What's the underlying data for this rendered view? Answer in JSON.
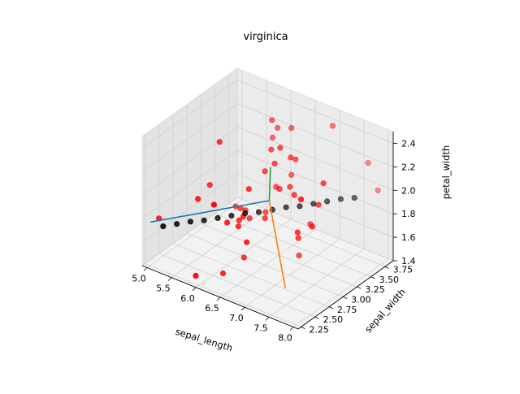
{
  "chart_data": {
    "type": "scatter",
    "projection": "3d",
    "title": "virginica",
    "xlabel": "sepal_length",
    "ylabel": "sepal_width",
    "zlabel": "petal_width",
    "xlim": [
      4.9,
      8.1
    ],
    "ylim": [
      2.2,
      3.9
    ],
    "zlim": [
      1.4,
      2.5
    ],
    "xticks": [
      "5.0",
      "5.5",
      "6.0",
      "6.5",
      "7.0",
      "7.5",
      "8.0"
    ],
    "yticks": [
      "2.25",
      "2.50",
      "2.75",
      "3.00",
      "3.25",
      "3.50",
      "3.75"
    ],
    "zticks": [
      "1.4",
      "1.6",
      "1.8",
      "2.0",
      "2.2",
      "2.4"
    ],
    "grid": true,
    "colors": {
      "data_points": "#ff0000",
      "fit_points": "#000000",
      "axis_line_1": "#1f77b4",
      "axis_line_2": "#ff7f0e",
      "axis_line_3": "#2ca02c",
      "pane": "#f2f2f2",
      "grid": "#d0d0d0"
    },
    "series": [
      {
        "kind": "points",
        "color_key": "data_points",
        "points": [
          [
            6.3,
            3.3,
            2.5
          ],
          [
            5.8,
            2.7,
            1.9
          ],
          [
            7.1,
            3.0,
            2.1
          ],
          [
            6.3,
            2.9,
            1.8
          ],
          [
            6.5,
            3.0,
            2.2
          ],
          [
            7.6,
            3.0,
            2.1
          ],
          [
            4.9,
            2.5,
            1.7
          ],
          [
            7.3,
            2.9,
            1.8
          ],
          [
            6.7,
            2.5,
            1.8
          ],
          [
            7.2,
            3.6,
            2.5
          ],
          [
            6.5,
            3.2,
            2.0
          ],
          [
            6.4,
            2.7,
            1.9
          ],
          [
            6.8,
            3.0,
            2.1
          ],
          [
            5.7,
            2.5,
            2.0
          ],
          [
            5.8,
            2.8,
            2.4
          ],
          [
            6.4,
            3.2,
            2.3
          ],
          [
            6.5,
            3.0,
            1.8
          ],
          [
            7.7,
            3.8,
            2.2
          ],
          [
            7.7,
            2.6,
            2.3
          ],
          [
            6.0,
            2.2,
            1.5
          ],
          [
            6.9,
            3.2,
            2.3
          ],
          [
            5.6,
            2.8,
            2.0
          ],
          [
            7.7,
            2.8,
            2.0
          ],
          [
            6.3,
            2.7,
            1.8
          ],
          [
            6.7,
            3.3,
            2.1
          ],
          [
            7.2,
            3.2,
            1.8
          ],
          [
            6.2,
            2.8,
            1.8
          ],
          [
            6.1,
            3.0,
            1.8
          ],
          [
            6.4,
            2.8,
            2.1
          ],
          [
            7.2,
            3.0,
            1.6
          ],
          [
            7.4,
            2.8,
            1.9
          ],
          [
            7.9,
            3.8,
            2.0
          ],
          [
            6.3,
            2.8,
            1.5
          ],
          [
            6.1,
            2.6,
            1.4
          ],
          [
            7.7,
            3.0,
            2.3
          ],
          [
            6.3,
            3.4,
            2.4
          ],
          [
            6.4,
            3.1,
            1.8
          ],
          [
            6.0,
            3.0,
            1.8
          ],
          [
            6.9,
            3.1,
            2.1
          ],
          [
            6.7,
            3.1,
            2.4
          ],
          [
            5.8,
            2.7,
            1.9
          ],
          [
            6.8,
            3.2,
            2.3
          ],
          [
            6.7,
            3.3,
            2.5
          ],
          [
            6.7,
            3.0,
            2.3
          ],
          [
            6.3,
            2.5,
            1.9
          ],
          [
            6.2,
            3.4,
            2.3
          ],
          [
            5.9,
            3.0,
            1.8
          ]
        ]
      },
      {
        "kind": "points",
        "color_key": "fit_points",
        "points": [
          [
            5.1,
            2.4,
            1.7
          ],
          [
            5.3,
            2.47,
            1.73
          ],
          [
            5.5,
            2.54,
            1.76
          ],
          [
            5.7,
            2.61,
            1.78
          ],
          [
            5.9,
            2.68,
            1.81
          ],
          [
            6.1,
            2.75,
            1.84
          ],
          [
            6.3,
            2.82,
            1.87
          ],
          [
            6.5,
            2.89,
            1.89
          ],
          [
            6.7,
            2.96,
            1.92
          ],
          [
            6.9,
            3.03,
            1.95
          ],
          [
            7.1,
            3.1,
            1.97
          ],
          [
            7.3,
            3.17,
            2.0
          ],
          [
            7.5,
            3.24,
            2.03
          ],
          [
            7.7,
            3.31,
            2.06
          ],
          [
            7.9,
            3.38,
            2.08
          ]
        ]
      },
      {
        "kind": "line",
        "color_key": "axis_line_1",
        "points": [
          [
            4.9,
            2.35,
            1.72
          ],
          [
            6.6,
            2.99,
            1.97
          ]
        ]
      },
      {
        "kind": "line",
        "color_key": "axis_line_2",
        "points": [
          [
            6.6,
            2.99,
            1.97
          ],
          [
            7.4,
            2.58,
            1.5
          ]
        ]
      },
      {
        "kind": "line",
        "color_key": "axis_line_3",
        "points": [
          [
            6.6,
            2.99,
            1.97
          ],
          [
            6.5,
            3.1,
            2.2
          ]
        ]
      }
    ]
  }
}
